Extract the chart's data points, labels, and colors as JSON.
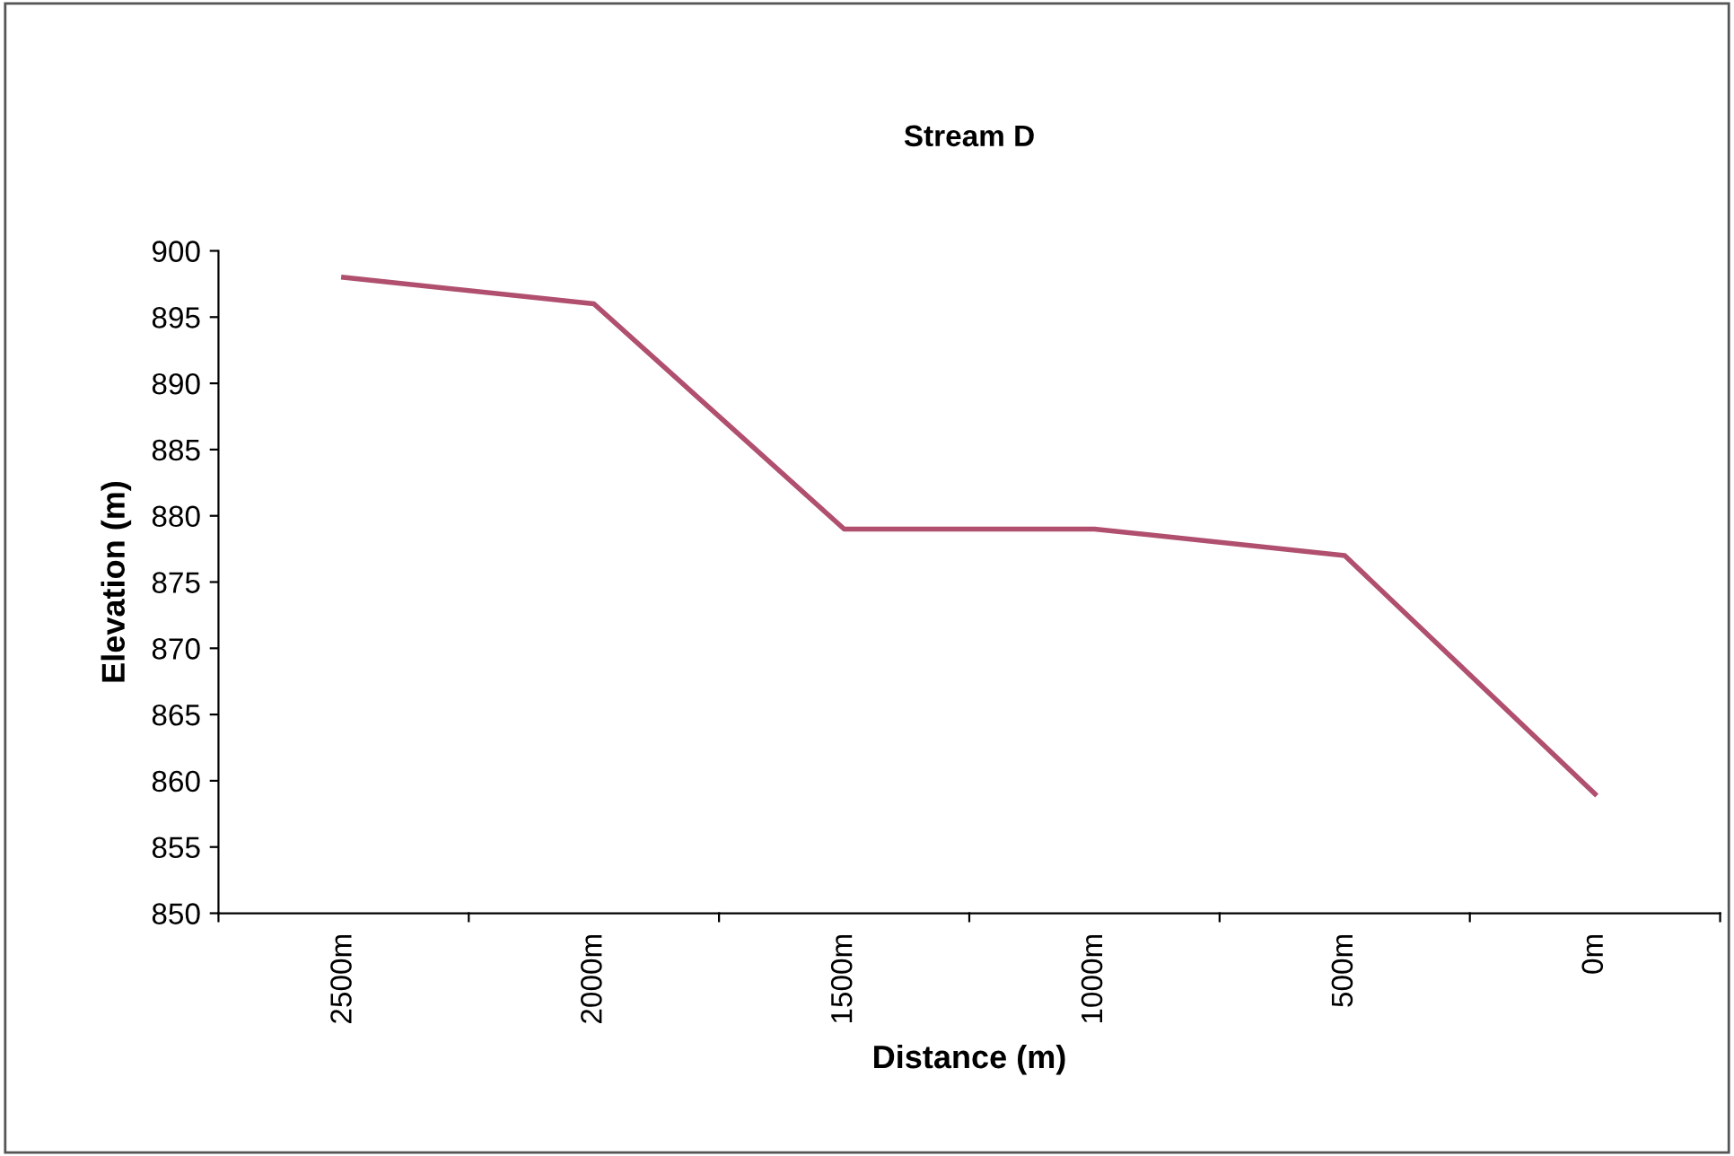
{
  "chart_data": {
    "type": "line",
    "title": "Stream D",
    "xlabel": "Distance (m)",
    "ylabel": "Elevation (m)",
    "categories": [
      "2500m",
      "2000m",
      "1500m",
      "1000m",
      "500m",
      "0m"
    ],
    "series": [
      {
        "color": "#b0506e",
        "values": [
          898,
          896,
          879,
          879,
          877,
          859
        ]
      }
    ],
    "ylim": [
      850,
      900
    ],
    "yticks": [
      850,
      855,
      860,
      865,
      870,
      875,
      880,
      885,
      890,
      895,
      900
    ],
    "grid": false,
    "legend": false,
    "marker": "none",
    "line_style": "solid"
  }
}
